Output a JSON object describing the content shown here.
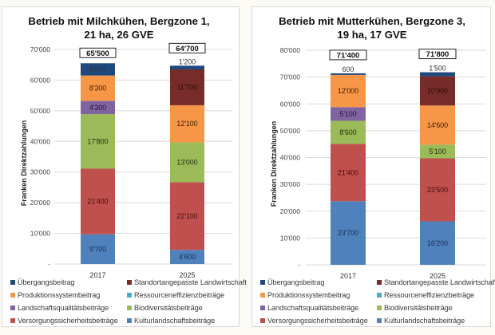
{
  "series_meta": [
    {
      "key": "kultur",
      "name": "Kulturlandschaftsbeiträge",
      "color": "#4f81bd",
      "label_color": "#1f2d4d"
    },
    {
      "key": "versorgung",
      "name": "Versorgungssicherheitsbeiträge",
      "color": "#c0504d",
      "label_color": "#3b0e0e"
    },
    {
      "key": "bio",
      "name": "Biodiversitätsbeiträge",
      "color": "#9bbb59",
      "label_color": "#1f2a0c"
    },
    {
      "key": "lq",
      "name": "Landschaftsqualitätsbeiträge",
      "color": "#8064a2",
      "label_color": "#231238"
    },
    {
      "key": "ressource",
      "name": "Ressourceneffizienzbeiträge",
      "color": "#4bacc6",
      "label_color": "#102a33"
    },
    {
      "key": "prod",
      "name": "Produktionssystembeitrag",
      "color": "#f79646",
      "label_color": "#3a1c05"
    },
    {
      "key": "standort",
      "name": "Standortangepasste Landwirtschaft",
      "color": "#772c2a",
      "label_color": "#2b0b0a"
    },
    {
      "key": "uebergang",
      "name": "Übergangsbeitrag",
      "color": "#1f497d",
      "label_color": "#333333"
    }
  ],
  "legend_order": [
    "uebergang",
    "standort",
    "prod",
    "ressource",
    "lq",
    "bio",
    "versorgung",
    "kultur"
  ],
  "chart_data": [
    {
      "type": "bar",
      "stacked": true,
      "title": "Betrieb mit Milchkühen, Bergzone 1, 21 ha, 26 GVE",
      "title_lines": [
        "Betrieb mit Milchkühen, Bergzone 1,",
        "21 ha, 26 GVE"
      ],
      "xlabel": "",
      "ylabel": "Franken Direktzahlungen",
      "ylim": [
        0,
        70000
      ],
      "yticks": [
        0,
        10000,
        20000,
        30000,
        40000,
        50000,
        60000,
        70000
      ],
      "ytick_labels": [
        "-",
        "10'000",
        "20'000",
        "30'000",
        "40'000",
        "50'000",
        "60'000",
        "70'000"
      ],
      "grid": true,
      "legend_position": "bottom",
      "categories": [
        "2017",
        "2025"
      ],
      "totals": [
        "65'500",
        "64'700"
      ],
      "series": [
        {
          "name": "Kulturlandschaftsbeiträge",
          "values": [
            9700,
            4600
          ],
          "labels": [
            "9'700",
            "4'600"
          ]
        },
        {
          "name": "Versorgungssicherheitsbeiträge",
          "values": [
            21400,
            22100
          ],
          "labels": [
            "21'400",
            "22'100"
          ]
        },
        {
          "name": "Biodiversitätsbeiträge",
          "values": [
            17800,
            13000
          ],
          "labels": [
            "17'800",
            "13'000"
          ]
        },
        {
          "name": "Landschaftsqualitätsbeiträge",
          "values": [
            4300,
            0
          ],
          "labels": [
            "4'300",
            "-"
          ]
        },
        {
          "name": "Ressourceneffizienzbeiträge",
          "values": [
            0,
            0
          ],
          "labels": [
            "-",
            "-"
          ]
        },
        {
          "name": "Produktionssystembeitrag",
          "values": [
            8300,
            12100
          ],
          "labels": [
            "8'300",
            "12'100"
          ]
        },
        {
          "name": "Standortangepasste Landwirtschaft",
          "values": [
            0,
            11700
          ],
          "labels": [
            "-",
            "11'700"
          ]
        },
        {
          "name": "Übergangsbeitrag",
          "values": [
            4000,
            1200
          ],
          "labels": [
            "4'000",
            "1'200"
          ]
        }
      ]
    },
    {
      "type": "bar",
      "stacked": true,
      "title": "Betrieb mit Mutterkühen, Bergzone 3, 19 ha, 17 GVE",
      "title_lines": [
        "Betrieb mit Mutterkühen, Bergzone 3,",
        "19 ha, 17 GVE"
      ],
      "xlabel": "",
      "ylabel": "Franken Direktzahlungen",
      "ylim": [
        0,
        80000
      ],
      "yticks": [
        0,
        10000,
        20000,
        30000,
        40000,
        50000,
        60000,
        70000,
        80000
      ],
      "ytick_labels": [
        "-",
        "10'000",
        "20'000",
        "30'000",
        "40'000",
        "50'000",
        "60'000",
        "70'000",
        "80'000"
      ],
      "grid": true,
      "legend_position": "bottom",
      "categories": [
        "2017",
        "2025"
      ],
      "totals": [
        "71'400",
        "71'800"
      ],
      "series": [
        {
          "name": "Kulturlandschaftsbeiträge",
          "values": [
            23700,
            16200
          ],
          "labels": [
            "23'700",
            "16'200"
          ]
        },
        {
          "name": "Versorgungssicherheitsbeiträge",
          "values": [
            21400,
            23500
          ],
          "labels": [
            "21'400",
            "23'500"
          ]
        },
        {
          "name": "Biodiversitätsbeiträge",
          "values": [
            8600,
            5100
          ],
          "labels": [
            "8'600",
            "5'100"
          ]
        },
        {
          "name": "Landschaftsqualitätsbeiträge",
          "values": [
            5100,
            0
          ],
          "labels": [
            "5'100",
            "-"
          ]
        },
        {
          "name": "Ressourceneffizienzbeiträge",
          "values": [
            0,
            0
          ],
          "labels": [
            "-",
            "-"
          ]
        },
        {
          "name": "Produktionssystembeitrag",
          "values": [
            12000,
            14600
          ],
          "labels": [
            "12'000",
            "14'600"
          ]
        },
        {
          "name": "Standortangepasste Landwirtschaft",
          "values": [
            0,
            10900
          ],
          "labels": [
            "-",
            "10'900"
          ]
        },
        {
          "name": "Übergangsbeitrag",
          "values": [
            600,
            1500
          ],
          "labels": [
            "600",
            "1'500"
          ]
        }
      ]
    }
  ]
}
